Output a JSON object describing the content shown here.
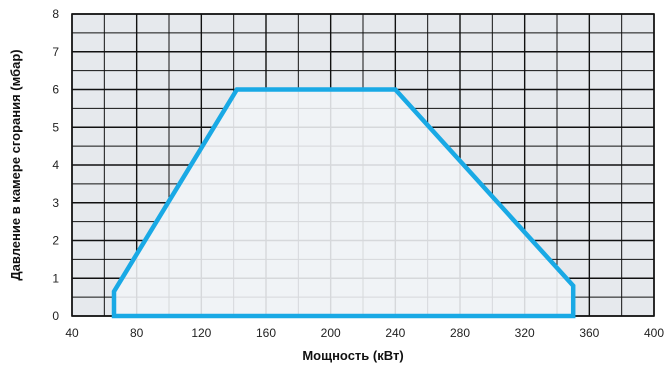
{
  "chart_data": {
    "type": "area",
    "title": "",
    "xlabel": "Мощность (кВт)",
    "ylabel": "Давление в камере сгорания (мбар)",
    "xlim": [
      40,
      400
    ],
    "ylim": [
      0,
      8
    ],
    "x_ticks": [
      40,
      80,
      120,
      160,
      200,
      240,
      280,
      320,
      360,
      400
    ],
    "y_ticks": [
      0,
      1,
      2,
      3,
      4,
      5,
      6,
      7,
      8
    ],
    "x_minor_step": 20,
    "y_minor_step": 0.5,
    "grid": true,
    "series": [
      {
        "x": [
          66,
          66,
          142,
          240,
          350,
          350,
          66
        ],
        "y": [
          0,
          0.65,
          6,
          6,
          0.8,
          0,
          0
        ]
      }
    ]
  },
  "colors": {
    "outline": "#19a9e5",
    "fill": "#f1f4f7",
    "grid_cell": "#e6e9ed",
    "grid_line": "#111111",
    "text": "#222222"
  }
}
